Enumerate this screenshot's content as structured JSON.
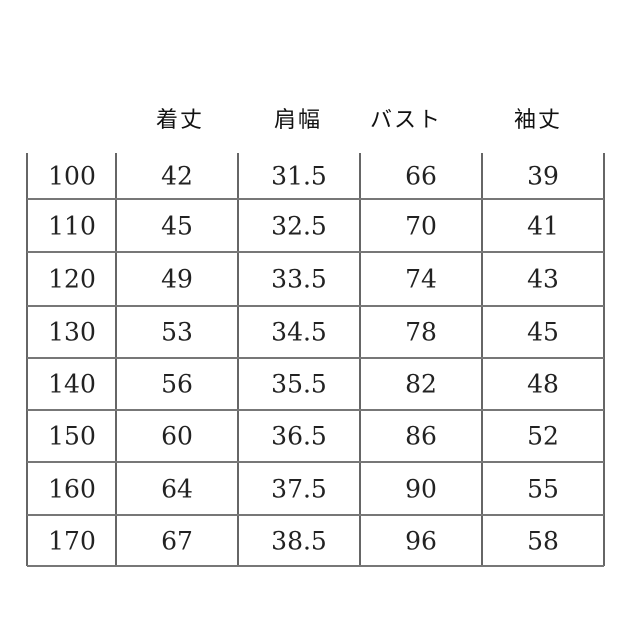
{
  "table": {
    "headers": [
      "",
      "着丈",
      "肩幅",
      "バスト",
      "袖丈"
    ],
    "rows": [
      [
        "100",
        "42",
        "31.5",
        "66",
        "39"
      ],
      [
        "110",
        "45",
        "32.5",
        "70",
        "41"
      ],
      [
        "120",
        "49",
        "33.5",
        "74",
        "43"
      ],
      [
        "130",
        "53",
        "34.5",
        "78",
        "45"
      ],
      [
        "140",
        "56",
        "35.5",
        "82",
        "48"
      ],
      [
        "150",
        "60",
        "36.5",
        "86",
        "52"
      ],
      [
        "160",
        "64",
        "37.5",
        "90",
        "55"
      ],
      [
        "170",
        "67",
        "38.5",
        "96",
        "58"
      ]
    ]
  }
}
